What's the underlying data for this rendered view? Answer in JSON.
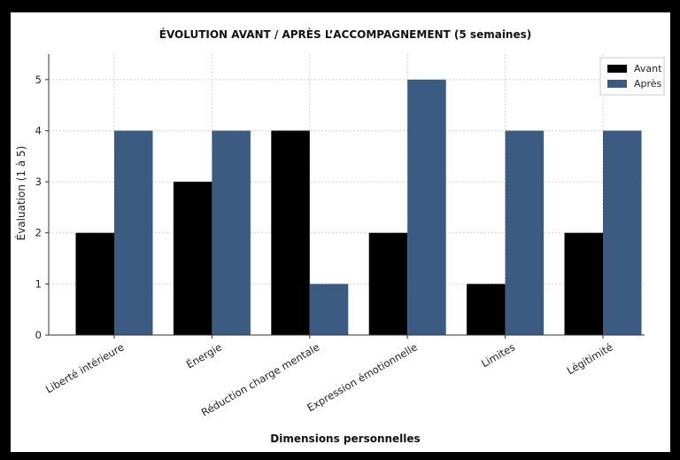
{
  "chart_data": {
    "type": "bar",
    "title": "ÉVOLUTION AVANT / APRÈS L’ACCOMPAGNEMENT (5 semaines)",
    "xlabel": "Dimensions personnelles",
    "ylabel": "Évaluation (1 à 5)",
    "ylim": [
      0,
      5.5
    ],
    "yticks": [
      0,
      1,
      2,
      3,
      4,
      5
    ],
    "grid": true,
    "legend_position": "top-right",
    "categories": [
      "Liberté intérieure",
      "Énergie",
      "Réduction charge mentale",
      "Expression émotionnelle",
      "Limites",
      "Légitimité"
    ],
    "series": [
      {
        "name": "Avant",
        "color": "#000000",
        "values": [
          2,
          3,
          4,
          2,
          1,
          2
        ]
      },
      {
        "name": "Après",
        "color": "#3b5b82",
        "values": [
          4,
          4,
          1,
          5,
          4,
          4
        ]
      }
    ]
  }
}
